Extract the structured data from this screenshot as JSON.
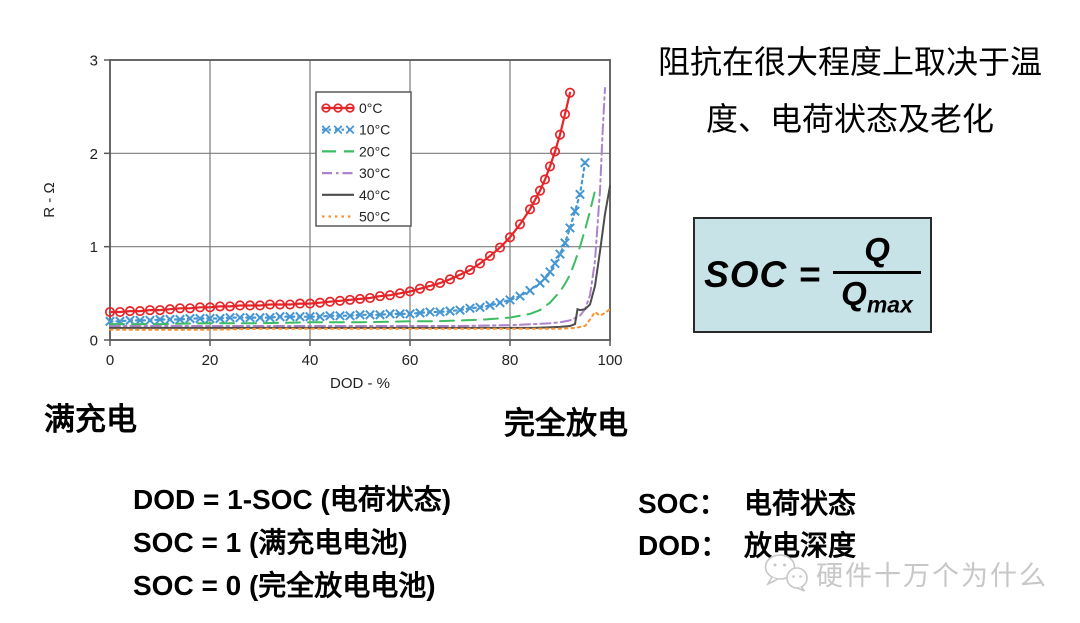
{
  "heading": {
    "line1": "阻抗在很大程度上取决于温",
    "line2": "度、电荷状态及老化"
  },
  "chart_data": {
    "type": "line",
    "xlabel": "DOD - %",
    "ylabel": "R - Ω",
    "xlim": [
      0,
      100
    ],
    "ylim": [
      0,
      3
    ],
    "xticks": [
      0,
      20,
      40,
      60,
      80,
      100
    ],
    "yticks": [
      0,
      1,
      2,
      3
    ],
    "grid": true,
    "legend_position": "upper center-left inside",
    "series": [
      {
        "name": "0°C",
        "color": "#e62529",
        "marker": "circle",
        "line": "solid",
        "points": [
          [
            0,
            0.3
          ],
          [
            2,
            0.3
          ],
          [
            4,
            0.31
          ],
          [
            6,
            0.31
          ],
          [
            8,
            0.32
          ],
          [
            10,
            0.32
          ],
          [
            12,
            0.33
          ],
          [
            14,
            0.34
          ],
          [
            16,
            0.34
          ],
          [
            18,
            0.35
          ],
          [
            20,
            0.35
          ],
          [
            22,
            0.36
          ],
          [
            24,
            0.36
          ],
          [
            26,
            0.37
          ],
          [
            28,
            0.37
          ],
          [
            30,
            0.37
          ],
          [
            32,
            0.38
          ],
          [
            34,
            0.38
          ],
          [
            36,
            0.38
          ],
          [
            38,
            0.39
          ],
          [
            40,
            0.39
          ],
          [
            42,
            0.4
          ],
          [
            44,
            0.41
          ],
          [
            46,
            0.42
          ],
          [
            48,
            0.43
          ],
          [
            50,
            0.44
          ],
          [
            52,
            0.45
          ],
          [
            54,
            0.47
          ],
          [
            56,
            0.48
          ],
          [
            58,
            0.5
          ],
          [
            60,
            0.52
          ],
          [
            62,
            0.55
          ],
          [
            64,
            0.58
          ],
          [
            66,
            0.61
          ],
          [
            68,
            0.65
          ],
          [
            70,
            0.7
          ],
          [
            72,
            0.75
          ],
          [
            74,
            0.82
          ],
          [
            76,
            0.9
          ],
          [
            78,
            0.99
          ],
          [
            80,
            1.1
          ],
          [
            82,
            1.24
          ],
          [
            84,
            1.4
          ],
          [
            85,
            1.5
          ],
          [
            86,
            1.6
          ],
          [
            87,
            1.72
          ],
          [
            88,
            1.86
          ],
          [
            89,
            2.02
          ],
          [
            90,
            2.2
          ],
          [
            91,
            2.42
          ],
          [
            92,
            2.65
          ]
        ]
      },
      {
        "name": "10°C",
        "color": "#4596d3",
        "marker": "x",
        "line": "dotted",
        "points": [
          [
            0,
            0.2
          ],
          [
            2,
            0.2
          ],
          [
            4,
            0.21
          ],
          [
            6,
            0.21
          ],
          [
            8,
            0.21
          ],
          [
            10,
            0.22
          ],
          [
            12,
            0.22
          ],
          [
            14,
            0.22
          ],
          [
            16,
            0.23
          ],
          [
            18,
            0.23
          ],
          [
            20,
            0.23
          ],
          [
            22,
            0.23
          ],
          [
            24,
            0.24
          ],
          [
            26,
            0.24
          ],
          [
            28,
            0.24
          ],
          [
            30,
            0.24
          ],
          [
            32,
            0.24
          ],
          [
            34,
            0.25
          ],
          [
            36,
            0.25
          ],
          [
            38,
            0.25
          ],
          [
            40,
            0.25
          ],
          [
            42,
            0.25
          ],
          [
            44,
            0.26
          ],
          [
            46,
            0.26
          ],
          [
            48,
            0.26
          ],
          [
            50,
            0.27
          ],
          [
            52,
            0.27
          ],
          [
            54,
            0.27
          ],
          [
            56,
            0.28
          ],
          [
            58,
            0.28
          ],
          [
            60,
            0.28
          ],
          [
            62,
            0.29
          ],
          [
            64,
            0.3
          ],
          [
            66,
            0.3
          ],
          [
            68,
            0.31
          ],
          [
            70,
            0.32
          ],
          [
            72,
            0.34
          ],
          [
            74,
            0.35
          ],
          [
            76,
            0.37
          ],
          [
            78,
            0.4
          ],
          [
            80,
            0.43
          ],
          [
            82,
            0.47
          ],
          [
            84,
            0.53
          ],
          [
            86,
            0.61
          ],
          [
            87,
            0.66
          ],
          [
            88,
            0.73
          ],
          [
            89,
            0.82
          ],
          [
            90,
            0.92
          ],
          [
            91,
            1.04
          ],
          [
            92,
            1.2
          ],
          [
            93,
            1.38
          ],
          [
            94,
            1.56
          ],
          [
            95,
            1.9
          ]
        ]
      },
      {
        "name": "20°C",
        "color": "#3dbd62",
        "marker": "none",
        "line": "dashed",
        "points": [
          [
            0,
            0.17
          ],
          [
            10,
            0.17
          ],
          [
            20,
            0.18
          ],
          [
            30,
            0.18
          ],
          [
            40,
            0.19
          ],
          [
            50,
            0.19
          ],
          [
            60,
            0.2
          ],
          [
            65,
            0.2
          ],
          [
            70,
            0.21
          ],
          [
            75,
            0.22
          ],
          [
            80,
            0.24
          ],
          [
            82,
            0.26
          ],
          [
            84,
            0.28
          ],
          [
            86,
            0.32
          ],
          [
            88,
            0.4
          ],
          [
            90,
            0.52
          ],
          [
            91,
            0.6
          ],
          [
            92,
            0.7
          ],
          [
            93,
            0.84
          ],
          [
            94,
            1.0
          ],
          [
            95,
            1.18
          ],
          [
            96,
            1.38
          ],
          [
            97,
            1.6
          ]
        ]
      },
      {
        "name": "30°C",
        "color": "#ad84cc",
        "marker": "none",
        "line": "dashdot",
        "points": [
          [
            0,
            0.15
          ],
          [
            10,
            0.15
          ],
          [
            20,
            0.15
          ],
          [
            30,
            0.15
          ],
          [
            40,
            0.15
          ],
          [
            50,
            0.15
          ],
          [
            60,
            0.15
          ],
          [
            70,
            0.15
          ],
          [
            80,
            0.16
          ],
          [
            85,
            0.17
          ],
          [
            88,
            0.18
          ],
          [
            90,
            0.19
          ],
          [
            92,
            0.21
          ],
          [
            94,
            0.26
          ],
          [
            95,
            0.33
          ],
          [
            96,
            0.48
          ],
          [
            97,
            0.85
          ],
          [
            98,
            1.6
          ],
          [
            98.5,
            2.2
          ],
          [
            99,
            2.7
          ]
        ]
      },
      {
        "name": "40°C",
        "color": "#4d4d4d",
        "marker": "none",
        "line": "solid",
        "points": [
          [
            0,
            0.13
          ],
          [
            10,
            0.13
          ],
          [
            20,
            0.13
          ],
          [
            30,
            0.13
          ],
          [
            40,
            0.13
          ],
          [
            50,
            0.13
          ],
          [
            60,
            0.13
          ],
          [
            70,
            0.13
          ],
          [
            80,
            0.13
          ],
          [
            85,
            0.13
          ],
          [
            90,
            0.14
          ],
          [
            92,
            0.15
          ],
          [
            93,
            0.17
          ],
          [
            93.5,
            0.33
          ],
          [
            94,
            0.32
          ],
          [
            95,
            0.33
          ],
          [
            96,
            0.38
          ],
          [
            97,
            0.58
          ],
          [
            98,
            0.95
          ],
          [
            99,
            1.35
          ],
          [
            100,
            1.65
          ]
        ]
      },
      {
        "name": "50°C",
        "color": "#f79435",
        "marker": "none",
        "line": "dotted",
        "points": [
          [
            0,
            0.11
          ],
          [
            10,
            0.11
          ],
          [
            20,
            0.11
          ],
          [
            30,
            0.12
          ],
          [
            40,
            0.12
          ],
          [
            50,
            0.12
          ],
          [
            60,
            0.12
          ],
          [
            70,
            0.12
          ],
          [
            80,
            0.12
          ],
          [
            85,
            0.12
          ],
          [
            90,
            0.12
          ],
          [
            93,
            0.13
          ],
          [
            95,
            0.15
          ],
          [
            96,
            0.22
          ],
          [
            97,
            0.3
          ],
          [
            98,
            0.26
          ],
          [
            99,
            0.29
          ],
          [
            100,
            0.33
          ]
        ]
      }
    ]
  },
  "state_labels": {
    "full_charge": "满充电",
    "full_discharge": "完全放电"
  },
  "formula": {
    "lhs": "SOC =",
    "numerator": "Q",
    "denominator": "Q",
    "denominator_sub": "max",
    "box_color": "#c8e3e8"
  },
  "definitions_left": [
    "DOD = 1-SOC (电荷状态)",
    "SOC = 1 (满充电电池)",
    "SOC = 0 (完全放电电池)"
  ],
  "definitions_right": [
    {
      "term": "SOC：",
      "text": "电荷状态"
    },
    {
      "term": "DOD：",
      "text": "放电深度"
    }
  ],
  "watermark": {
    "text": "硬件十万个为什么",
    "color": "#c7c7c7"
  }
}
